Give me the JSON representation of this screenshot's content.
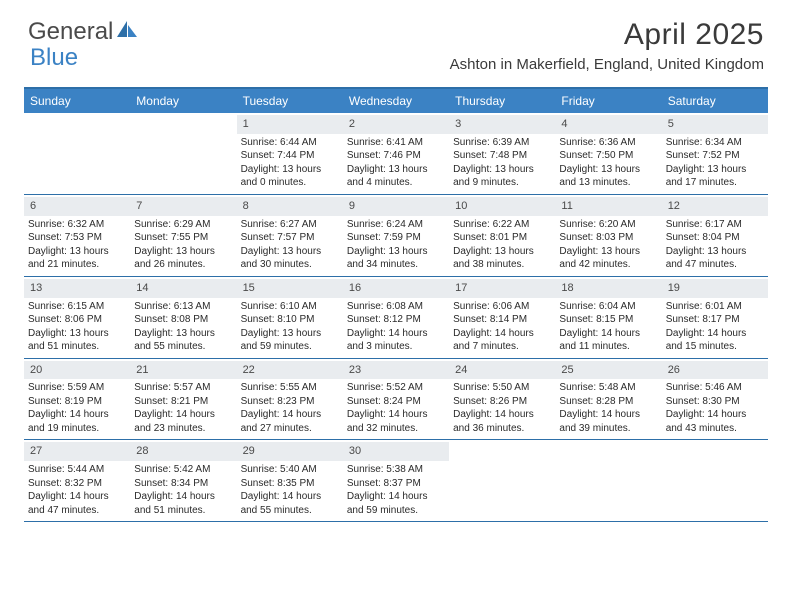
{
  "logo": {
    "part1": "General",
    "part2": "Blue"
  },
  "title": "April 2025",
  "location": "Ashton in Makerfield, England, United Kingdom",
  "colors": {
    "header_bg": "#3b82c4",
    "header_text": "#ffffff",
    "border": "#2d6fa8",
    "daynum_bg": "#e9ecef",
    "text": "#2a2a2a"
  },
  "day_names": [
    "Sunday",
    "Monday",
    "Tuesday",
    "Wednesday",
    "Thursday",
    "Friday",
    "Saturday"
  ],
  "weeks": [
    [
      {
        "n": "",
        "empty": true
      },
      {
        "n": "",
        "empty": true
      },
      {
        "n": "1",
        "sr": "Sunrise: 6:44 AM",
        "ss": "Sunset: 7:44 PM",
        "d1": "Daylight: 13 hours",
        "d2": "and 0 minutes."
      },
      {
        "n": "2",
        "sr": "Sunrise: 6:41 AM",
        "ss": "Sunset: 7:46 PM",
        "d1": "Daylight: 13 hours",
        "d2": "and 4 minutes."
      },
      {
        "n": "3",
        "sr": "Sunrise: 6:39 AM",
        "ss": "Sunset: 7:48 PM",
        "d1": "Daylight: 13 hours",
        "d2": "and 9 minutes."
      },
      {
        "n": "4",
        "sr": "Sunrise: 6:36 AM",
        "ss": "Sunset: 7:50 PM",
        "d1": "Daylight: 13 hours",
        "d2": "and 13 minutes."
      },
      {
        "n": "5",
        "sr": "Sunrise: 6:34 AM",
        "ss": "Sunset: 7:52 PM",
        "d1": "Daylight: 13 hours",
        "d2": "and 17 minutes."
      }
    ],
    [
      {
        "n": "6",
        "sr": "Sunrise: 6:32 AM",
        "ss": "Sunset: 7:53 PM",
        "d1": "Daylight: 13 hours",
        "d2": "and 21 minutes."
      },
      {
        "n": "7",
        "sr": "Sunrise: 6:29 AM",
        "ss": "Sunset: 7:55 PM",
        "d1": "Daylight: 13 hours",
        "d2": "and 26 minutes."
      },
      {
        "n": "8",
        "sr": "Sunrise: 6:27 AM",
        "ss": "Sunset: 7:57 PM",
        "d1": "Daylight: 13 hours",
        "d2": "and 30 minutes."
      },
      {
        "n": "9",
        "sr": "Sunrise: 6:24 AM",
        "ss": "Sunset: 7:59 PM",
        "d1": "Daylight: 13 hours",
        "d2": "and 34 minutes."
      },
      {
        "n": "10",
        "sr": "Sunrise: 6:22 AM",
        "ss": "Sunset: 8:01 PM",
        "d1": "Daylight: 13 hours",
        "d2": "and 38 minutes."
      },
      {
        "n": "11",
        "sr": "Sunrise: 6:20 AM",
        "ss": "Sunset: 8:03 PM",
        "d1": "Daylight: 13 hours",
        "d2": "and 42 minutes."
      },
      {
        "n": "12",
        "sr": "Sunrise: 6:17 AM",
        "ss": "Sunset: 8:04 PM",
        "d1": "Daylight: 13 hours",
        "d2": "and 47 minutes."
      }
    ],
    [
      {
        "n": "13",
        "sr": "Sunrise: 6:15 AM",
        "ss": "Sunset: 8:06 PM",
        "d1": "Daylight: 13 hours",
        "d2": "and 51 minutes."
      },
      {
        "n": "14",
        "sr": "Sunrise: 6:13 AM",
        "ss": "Sunset: 8:08 PM",
        "d1": "Daylight: 13 hours",
        "d2": "and 55 minutes."
      },
      {
        "n": "15",
        "sr": "Sunrise: 6:10 AM",
        "ss": "Sunset: 8:10 PM",
        "d1": "Daylight: 13 hours",
        "d2": "and 59 minutes."
      },
      {
        "n": "16",
        "sr": "Sunrise: 6:08 AM",
        "ss": "Sunset: 8:12 PM",
        "d1": "Daylight: 14 hours",
        "d2": "and 3 minutes."
      },
      {
        "n": "17",
        "sr": "Sunrise: 6:06 AM",
        "ss": "Sunset: 8:14 PM",
        "d1": "Daylight: 14 hours",
        "d2": "and 7 minutes."
      },
      {
        "n": "18",
        "sr": "Sunrise: 6:04 AM",
        "ss": "Sunset: 8:15 PM",
        "d1": "Daylight: 14 hours",
        "d2": "and 11 minutes."
      },
      {
        "n": "19",
        "sr": "Sunrise: 6:01 AM",
        "ss": "Sunset: 8:17 PM",
        "d1": "Daylight: 14 hours",
        "d2": "and 15 minutes."
      }
    ],
    [
      {
        "n": "20",
        "sr": "Sunrise: 5:59 AM",
        "ss": "Sunset: 8:19 PM",
        "d1": "Daylight: 14 hours",
        "d2": "and 19 minutes."
      },
      {
        "n": "21",
        "sr": "Sunrise: 5:57 AM",
        "ss": "Sunset: 8:21 PM",
        "d1": "Daylight: 14 hours",
        "d2": "and 23 minutes."
      },
      {
        "n": "22",
        "sr": "Sunrise: 5:55 AM",
        "ss": "Sunset: 8:23 PM",
        "d1": "Daylight: 14 hours",
        "d2": "and 27 minutes."
      },
      {
        "n": "23",
        "sr": "Sunrise: 5:52 AM",
        "ss": "Sunset: 8:24 PM",
        "d1": "Daylight: 14 hours",
        "d2": "and 32 minutes."
      },
      {
        "n": "24",
        "sr": "Sunrise: 5:50 AM",
        "ss": "Sunset: 8:26 PM",
        "d1": "Daylight: 14 hours",
        "d2": "and 36 minutes."
      },
      {
        "n": "25",
        "sr": "Sunrise: 5:48 AM",
        "ss": "Sunset: 8:28 PM",
        "d1": "Daylight: 14 hours",
        "d2": "and 39 minutes."
      },
      {
        "n": "26",
        "sr": "Sunrise: 5:46 AM",
        "ss": "Sunset: 8:30 PM",
        "d1": "Daylight: 14 hours",
        "d2": "and 43 minutes."
      }
    ],
    [
      {
        "n": "27",
        "sr": "Sunrise: 5:44 AM",
        "ss": "Sunset: 8:32 PM",
        "d1": "Daylight: 14 hours",
        "d2": "and 47 minutes."
      },
      {
        "n": "28",
        "sr": "Sunrise: 5:42 AM",
        "ss": "Sunset: 8:34 PM",
        "d1": "Daylight: 14 hours",
        "d2": "and 51 minutes."
      },
      {
        "n": "29",
        "sr": "Sunrise: 5:40 AM",
        "ss": "Sunset: 8:35 PM",
        "d1": "Daylight: 14 hours",
        "d2": "and 55 minutes."
      },
      {
        "n": "30",
        "sr": "Sunrise: 5:38 AM",
        "ss": "Sunset: 8:37 PM",
        "d1": "Daylight: 14 hours",
        "d2": "and 59 minutes."
      },
      {
        "n": "",
        "empty": true
      },
      {
        "n": "",
        "empty": true
      },
      {
        "n": "",
        "empty": true
      }
    ]
  ]
}
